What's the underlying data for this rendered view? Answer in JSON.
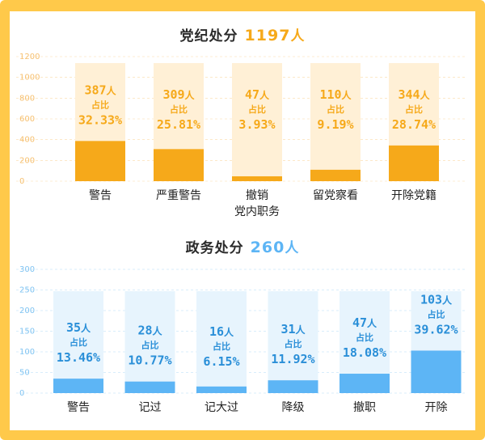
{
  "chart_data": [
    {
      "type": "bar",
      "title": "党纪处分",
      "total": "1197",
      "total_unit": "人",
      "categories": [
        "警告",
        "严重警告",
        "撤销\n党内职务",
        "留党察看",
        "开除党籍"
      ],
      "values": [
        387,
        309,
        47,
        110,
        344
      ],
      "value_unit": "人",
      "percent_prefix": "占比",
      "percents": [
        "32.33%",
        "25.81%",
        "3.93%",
        "9.19%",
        "28.74%"
      ],
      "ylim": [
        0,
        1200
      ],
      "yticks": [
        "0",
        "200",
        "400",
        "600",
        "800",
        "1000",
        "1200"
      ],
      "bar_color": "#f6a91a",
      "bg_bar_color": "#fff0d6",
      "label_color": "#f6a91a",
      "tick_color": "#f6c070"
    },
    {
      "type": "bar",
      "title": "政务处分",
      "total": "260",
      "total_unit": "人",
      "categories": [
        "警告",
        "记过",
        "记大过",
        "降级",
        "撤职",
        "开除"
      ],
      "values": [
        35,
        28,
        16,
        31,
        47,
        103
      ],
      "value_unit": "人",
      "percent_prefix": "占比",
      "percents": [
        "13.46%",
        "10.77%",
        "6.15%",
        "11.92%",
        "18.08%",
        "39.62%"
      ],
      "ylim": [
        0,
        300
      ],
      "yticks": [
        "0",
        "50",
        "100",
        "150",
        "200",
        "250",
        "300"
      ],
      "bar_color": "#5db5f5",
      "bg_bar_color": "#e7f4fd",
      "label_color": "#2a8fd8",
      "tick_color": "#80c4f2"
    }
  ]
}
